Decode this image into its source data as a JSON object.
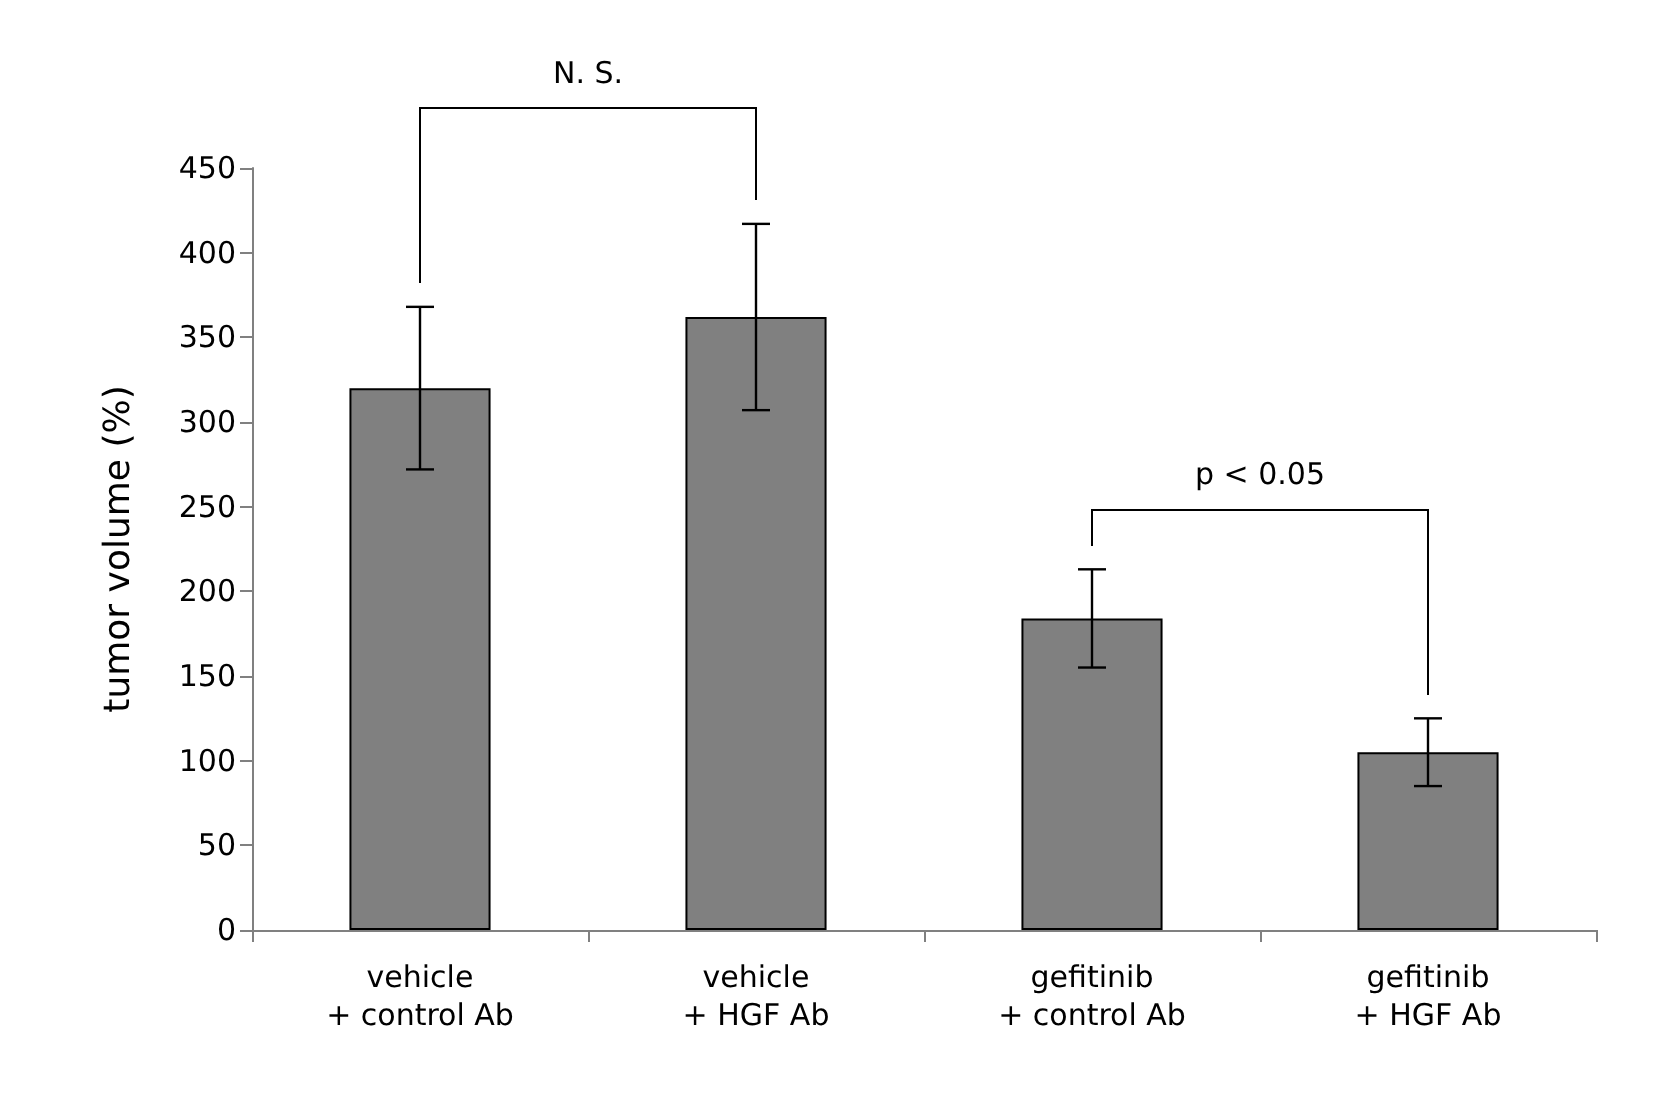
{
  "chart_data": {
    "type": "bar",
    "ylabel": "tumor volume (%)",
    "categories": [
      "vehicle\n+ control Ab",
      "vehicle\n+ HGF Ab",
      "gefitinib\n+ control Ab",
      "gefitinib\n+ HGF Ab"
    ],
    "values": [
      320,
      362,
      184,
      105
    ],
    "errors": [
      48,
      55,
      29,
      20
    ],
    "color": "#808080",
    "ylim": [
      0,
      450
    ],
    "yticks": [
      0,
      50,
      100,
      150,
      200,
      250,
      300,
      350,
      400,
      450
    ],
    "grid": false,
    "annotations": [
      "N. S.",
      "p < 0.05"
    ]
  }
}
